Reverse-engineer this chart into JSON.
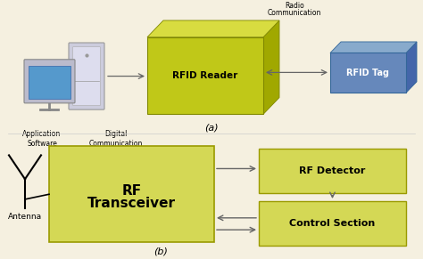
{
  "bg_color": "#f5f0e0",
  "olive_dark": "#a0a800",
  "olive_mid": "#c8cc10",
  "olive_top": "#d8dc40",
  "olive_face": "#c0c818",
  "yellow_box": "#d4d855",
  "yellow_border": "#9a9a00",
  "blue_face": "#6688bb",
  "blue_dark": "#4466aa",
  "blue_top": "#88aacc",
  "arrow_color": "#666666",
  "text_color": "#000000",
  "label_a": "(a)",
  "label_b": "(b)",
  "rfid_reader_text": "RFID Reader",
  "rfid_tag_text": "RFID Tag",
  "radio_comm_line1": "Radio",
  "radio_comm_line2": "Communication",
  "app_software_text": "Application\nSoftware",
  "digital_comm_text": "Digital\nCommunication",
  "rf_transceiver_line1": "RF",
  "rf_transceiver_line2": "Transceiver",
  "rf_detector_text": "RF Detector",
  "control_section_text": "Control Section",
  "antenna_text": "Antenna"
}
